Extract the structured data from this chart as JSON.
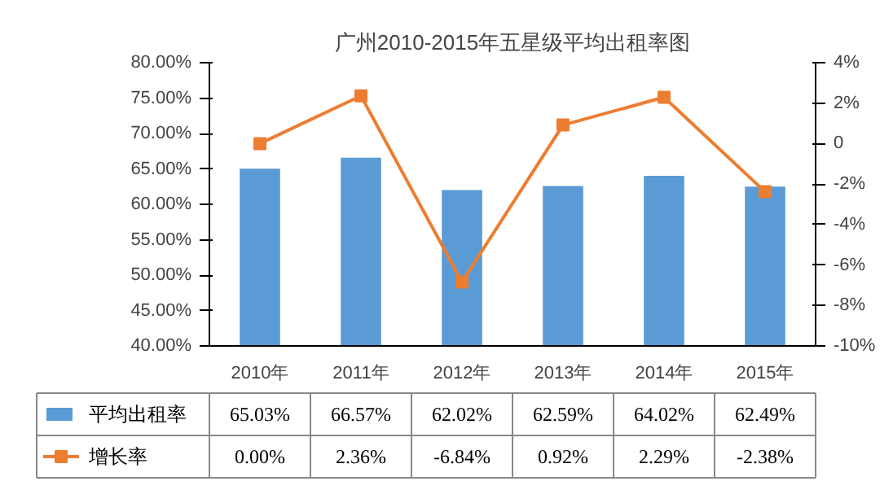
{
  "chart_data": {
    "type": "bar",
    "title": "广州2010-2015年五星级平均出租率图",
    "categories": [
      "2010年",
      "2011年",
      "2012年",
      "2013年",
      "2014年",
      "2015年"
    ],
    "series": [
      {
        "name": "平均出租率",
        "color": "#5b9bd5",
        "values": [
          65.03,
          66.57,
          62.02,
          62.59,
          64.02,
          62.49
        ],
        "value_labels": [
          "65.03%",
          "66.57%",
          "62.02%",
          "62.59%",
          "64.02%",
          "62.49%"
        ]
      },
      {
        "name": "增长率",
        "type": "line",
        "axis": "y2",
        "color": "#ed7d31",
        "marker": "square",
        "values": [
          0.0,
          2.36,
          -6.84,
          0.92,
          2.29,
          -2.38
        ],
        "value_labels": [
          "0.00%",
          "2.36%",
          "-6.84%",
          "0.92%",
          "2.29%",
          "-2.38%"
        ]
      }
    ],
    "ylim": [
      40,
      80
    ],
    "yticks": [
      {
        "value": 40,
        "label": "40.00%"
      },
      {
        "value": 45,
        "label": "45.00%"
      },
      {
        "value": 50,
        "label": "50.00%"
      },
      {
        "value": 55,
        "label": "55.00%"
      },
      {
        "value": 60,
        "label": "60.00%"
      },
      {
        "value": 65,
        "label": "65.00%"
      },
      {
        "value": 70,
        "label": "70.00%"
      },
      {
        "value": 75,
        "label": "75.00%"
      },
      {
        "value": 80,
        "label": "80.00%"
      }
    ],
    "y2lim": [
      -10,
      4
    ],
    "y2ticks": [
      {
        "value": -10,
        "label": "-10%"
      },
      {
        "value": -8,
        "label": "-8%"
      },
      {
        "value": -6,
        "label": "-6%"
      },
      {
        "value": -4,
        "label": "-4%"
      },
      {
        "value": -2,
        "label": "-2%"
      },
      {
        "value": 0,
        "label": "0"
      },
      {
        "value": 2,
        "label": "2%"
      },
      {
        "value": 4,
        "label": "4%"
      }
    ],
    "grid": false,
    "legend": "bottom"
  }
}
